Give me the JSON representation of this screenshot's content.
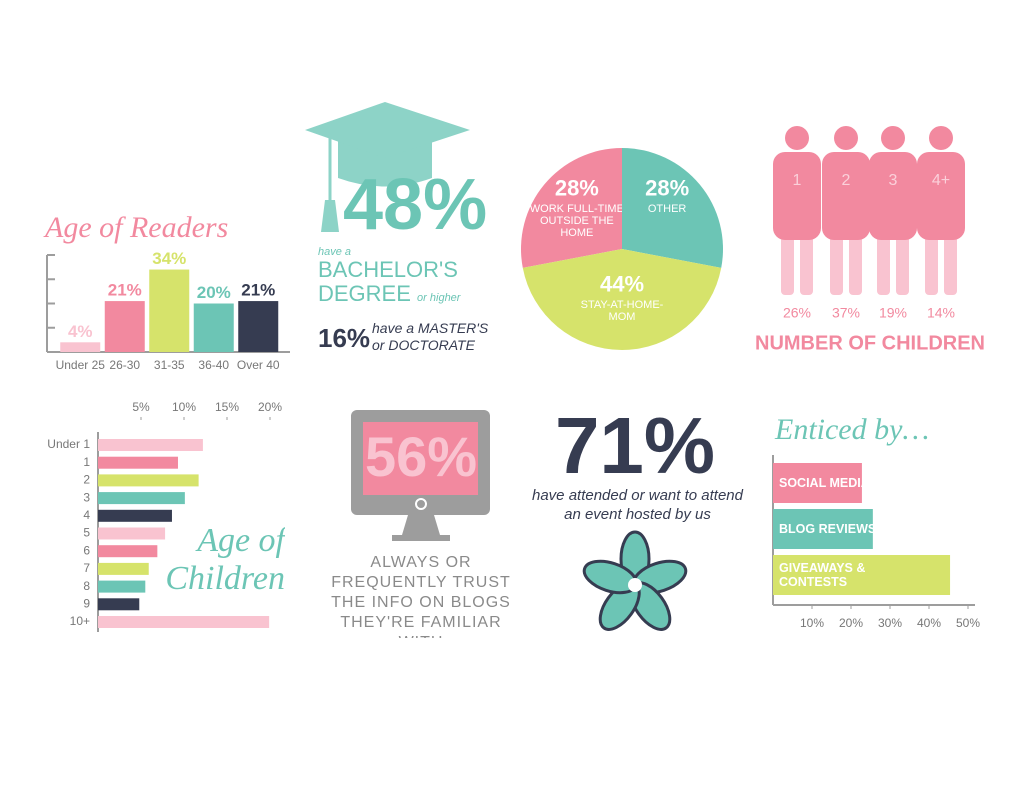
{
  "chart_data": [
    {
      "type": "bar",
      "title": "Age of Readers",
      "categories": [
        "Under 25",
        "26-30",
        "31-35",
        "36-40",
        "Over 40"
      ],
      "values": [
        4,
        21,
        34,
        20,
        21
      ],
      "value_labels": [
        "4%",
        "21%",
        "34%",
        "20%",
        "21%"
      ],
      "colors": [
        "#f9c3d0",
        "#f2899f",
        "#d6e36b",
        "#6cc5b5",
        "#363c51"
      ],
      "ylim": [
        0,
        40
      ],
      "yticks": [
        0,
        10,
        20,
        30,
        40
      ]
    },
    {
      "type": "pie",
      "categories": [
        "WORK FULL-TIME OUTSIDE THE HOME",
        "OTHER",
        "STAY-AT-HOME-MOM"
      ],
      "values": [
        28,
        28,
        44
      ],
      "value_labels": [
        "28%",
        "28%",
        "44%"
      ],
      "colors": [
        "#f2899f",
        "#6cc5b5",
        "#d6e36b"
      ]
    },
    {
      "type": "pictograph",
      "title": "NUMBER OF CHILDREN",
      "categories": [
        "1",
        "2",
        "3",
        "4+"
      ],
      "values": [
        26,
        37,
        19,
        14
      ],
      "value_labels": [
        "26%",
        "37%",
        "19%",
        "14%"
      ],
      "color": "#f2899f"
    },
    {
      "type": "hbar",
      "title": "Age of Children",
      "categories": [
        "Under 1",
        "1",
        "2",
        "3",
        "4",
        "5",
        "6",
        "7",
        "8",
        "9",
        "10+"
      ],
      "values": [
        12.2,
        9.3,
        11.7,
        10.1,
        8.6,
        7.8,
        6.9,
        5.9,
        5.5,
        4.8,
        19.9
      ],
      "colors": [
        "#f9c3d0",
        "#f2899f",
        "#d6e36b",
        "#6cc5b5",
        "#363c51",
        "#f9c3d0",
        "#f2899f",
        "#d6e36b",
        "#6cc5b5",
        "#363c51",
        "#f9c3d0"
      ],
      "xlim": [
        0,
        20
      ],
      "xticks": [
        {
          "value": 5,
          "label": "5%"
        },
        {
          "value": 10,
          "label": "10%"
        },
        {
          "value": 15,
          "label": "15%"
        },
        {
          "value": 20,
          "label": "20%"
        }
      ]
    },
    {
      "type": "hbar",
      "title": "Enticed by…",
      "categories": [
        "SOCIAL MEDIA POSTS",
        "BLOG REVIEWS",
        "GIVEAWAYS & CONTESTS"
      ],
      "values": [
        22.8,
        25.6,
        45.4
      ],
      "colors": [
        "#f2899f",
        "#6cc5b5",
        "#d6e36b"
      ],
      "xlim": [
        0,
        50
      ],
      "xticks": [
        {
          "value": 10,
          "label": "10%"
        },
        {
          "value": 20,
          "label": "20%"
        },
        {
          "value": 30,
          "label": "30%"
        },
        {
          "value": 40,
          "label": "40%"
        },
        {
          "value": 50,
          "label": "50%"
        }
      ]
    }
  ],
  "education": {
    "bachelor_pct": "48%",
    "bachelor_prefix": "have a",
    "bachelor_label": "BACHELOR'S DEGREE",
    "bachelor_suffix": "or higher",
    "masters_pct": "16%",
    "masters_label": "have a MASTER'S or DOCTORATE"
  },
  "trust": {
    "pct": "56%",
    "label": "ALWAYS OR FREQUENTLY TRUST THE INFO ON BLOGS THEY'RE FAMILIAR WITH"
  },
  "events": {
    "pct": "71%",
    "label": "have attended or want to attend an event hosted by us"
  }
}
